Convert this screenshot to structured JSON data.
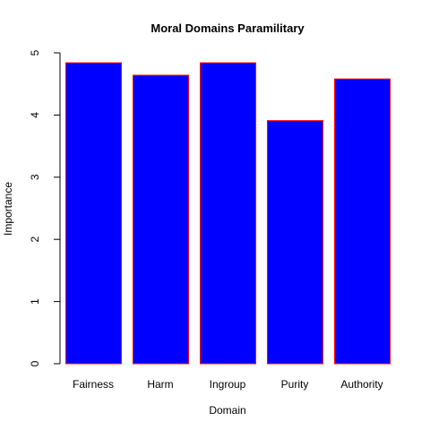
{
  "chart_data": {
    "type": "bar",
    "title": "Moral Domains Paramilitary",
    "xlabel": "Domain",
    "ylabel": "Importance",
    "categories": [
      "Fairness",
      "Harm",
      "Ingroup",
      "Purity",
      "Authority"
    ],
    "values": [
      4.84,
      4.64,
      4.84,
      3.91,
      4.58
    ],
    "ylim": [
      0,
      5
    ],
    "yticks": [
      "0",
      "1",
      "2",
      "3",
      "4",
      "5"
    ],
    "grid": false,
    "bar_fill": "#0000ff",
    "bar_border": "#ff0000"
  }
}
